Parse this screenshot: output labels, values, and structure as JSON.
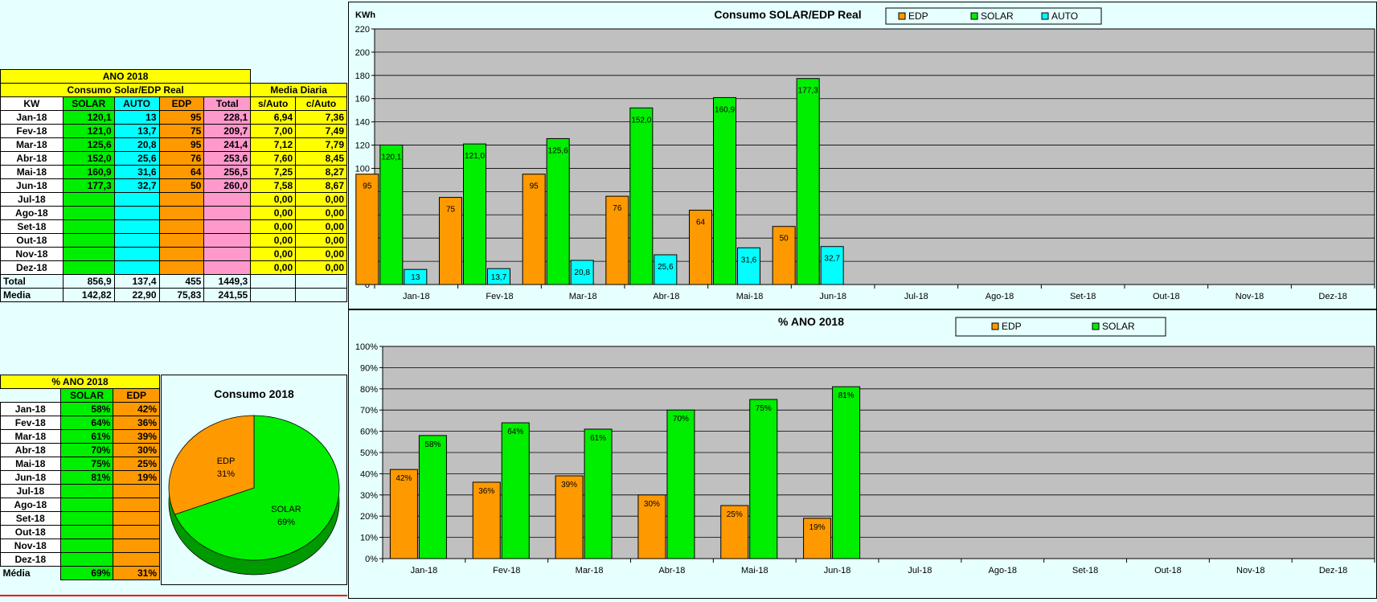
{
  "table1": {
    "title": "ANO 2018",
    "subtitle": "Consumo Solar/EDP Real",
    "media_title": "Media Diaria",
    "headers": [
      "KW",
      "SOLAR",
      "AUTO",
      "EDP",
      "Total",
      "s/Auto",
      "c/Auto"
    ],
    "rows": [
      [
        "Jan-18",
        "120,1",
        "13",
        "95",
        "228,1",
        "6,94",
        "7,36"
      ],
      [
        "Fev-18",
        "121,0",
        "13,7",
        "75",
        "209,7",
        "7,00",
        "7,49"
      ],
      [
        "Mar-18",
        "125,6",
        "20,8",
        "95",
        "241,4",
        "7,12",
        "7,79"
      ],
      [
        "Abr-18",
        "152,0",
        "25,6",
        "76",
        "253,6",
        "7,60",
        "8,45"
      ],
      [
        "Mai-18",
        "160,9",
        "31,6",
        "64",
        "256,5",
        "7,25",
        "8,27"
      ],
      [
        "Jun-18",
        "177,3",
        "32,7",
        "50",
        "260,0",
        "7,58",
        "8,67"
      ],
      [
        "Jul-18",
        "",
        "",
        "",
        "",
        "0,00",
        "0,00"
      ],
      [
        "Ago-18",
        "",
        "",
        "",
        "",
        "0,00",
        "0,00"
      ],
      [
        "Set-18",
        "",
        "",
        "",
        "",
        "0,00",
        "0,00"
      ],
      [
        "Out-18",
        "",
        "",
        "",
        "",
        "0,00",
        "0,00"
      ],
      [
        "Nov-18",
        "",
        "",
        "",
        "",
        "0,00",
        "0,00"
      ],
      [
        "Dez-18",
        "",
        "",
        "",
        "",
        "0,00",
        "0,00"
      ]
    ],
    "total": [
      "Total",
      "856,9",
      "137,4",
      "455",
      "1449,3"
    ],
    "media": [
      "Media",
      "142,82",
      "22,90",
      "75,83",
      "241,55"
    ]
  },
  "table2": {
    "title": "% ANO 2018",
    "headers": [
      "SOLAR",
      "EDP"
    ],
    "rows": [
      [
        "Jan-18",
        "58%",
        "42%"
      ],
      [
        "Fev-18",
        "64%",
        "36%"
      ],
      [
        "Mar-18",
        "61%",
        "39%"
      ],
      [
        "Abr-18",
        "70%",
        "30%"
      ],
      [
        "Mai-18",
        "75%",
        "25%"
      ],
      [
        "Jun-18",
        "81%",
        "19%"
      ],
      [
        "Jul-18",
        "",
        ""
      ],
      [
        "Ago-18",
        "",
        ""
      ],
      [
        "Set-18",
        "",
        ""
      ],
      [
        "Out-18",
        "",
        ""
      ],
      [
        "Nov-18",
        "",
        ""
      ],
      [
        "Dez-18",
        "",
        ""
      ]
    ],
    "media": [
      "Média",
      "69%",
      "31%"
    ]
  },
  "colors": {
    "edp": "#ff9900",
    "solar": "#00ee00",
    "auto": "#00ffff",
    "plot_bg": "#c0c0c0"
  },
  "chart_data": [
    {
      "type": "bar",
      "title": "Consumo SOLAR/EDP Real",
      "ylabel": "KWh",
      "categories": [
        "Jan-18",
        "Fev-18",
        "Mar-18",
        "Abr-18",
        "Mai-18",
        "Jun-18",
        "Jul-18",
        "Ago-18",
        "Set-18",
        "Out-18",
        "Nov-18",
        "Dez-18"
      ],
      "ylim": [
        0,
        220
      ],
      "yticks": [
        "0",
        "20",
        "40",
        "60",
        "80",
        "100",
        "120",
        "140",
        "160",
        "180",
        "200",
        "220"
      ],
      "legend": "top",
      "grid": true,
      "series": [
        {
          "name": "EDP",
          "values": [
            95,
            75,
            95,
            76,
            64,
            50,
            null,
            null,
            null,
            null,
            null,
            null
          ],
          "labels": [
            "95",
            "75",
            "95",
            "76",
            "64",
            "50"
          ]
        },
        {
          "name": "SOLAR",
          "values": [
            120.1,
            121.0,
            125.6,
            152.0,
            160.9,
            177.3,
            null,
            null,
            null,
            null,
            null,
            null
          ],
          "labels": [
            "120,1",
            "121,0",
            "125,6",
            "152,0",
            "160,9",
            "177,3"
          ]
        },
        {
          "name": "AUTO",
          "values": [
            13,
            13.7,
            20.8,
            25.6,
            31.6,
            32.7,
            null,
            null,
            null,
            null,
            null,
            null
          ],
          "labels": [
            "13",
            "13,7",
            "20,8",
            "25,6",
            "31,6",
            "32,7"
          ]
        }
      ]
    },
    {
      "type": "bar",
      "title": "% ANO 2018",
      "categories": [
        "Jan-18",
        "Fev-18",
        "Mar-18",
        "Abr-18",
        "Mai-18",
        "Jun-18",
        "Jul-18",
        "Ago-18",
        "Set-18",
        "Out-18",
        "Nov-18",
        "Dez-18"
      ],
      "ylim": [
        0,
        100
      ],
      "yticks": [
        "0%",
        "10%",
        "20%",
        "30%",
        "40%",
        "50%",
        "60%",
        "70%",
        "80%",
        "90%",
        "100%"
      ],
      "legend": "top",
      "grid": true,
      "series": [
        {
          "name": "EDP",
          "values": [
            42,
            36,
            39,
            30,
            25,
            19,
            null,
            null,
            null,
            null,
            null,
            null
          ],
          "labels": [
            "42%",
            "36%",
            "39%",
            "30%",
            "25%",
            "19%"
          ]
        },
        {
          "name": "SOLAR",
          "values": [
            58,
            64,
            61,
            70,
            75,
            81,
            null,
            null,
            null,
            null,
            null,
            null
          ],
          "labels": [
            "58%",
            "64%",
            "61%",
            "70%",
            "75%",
            "81%"
          ]
        }
      ]
    },
    {
      "type": "pie",
      "title": "Consumo 2018",
      "slices": [
        {
          "name": "EDP",
          "value": 31,
          "label": "31%"
        },
        {
          "name": "SOLAR",
          "value": 69,
          "label": "69%"
        }
      ]
    }
  ]
}
